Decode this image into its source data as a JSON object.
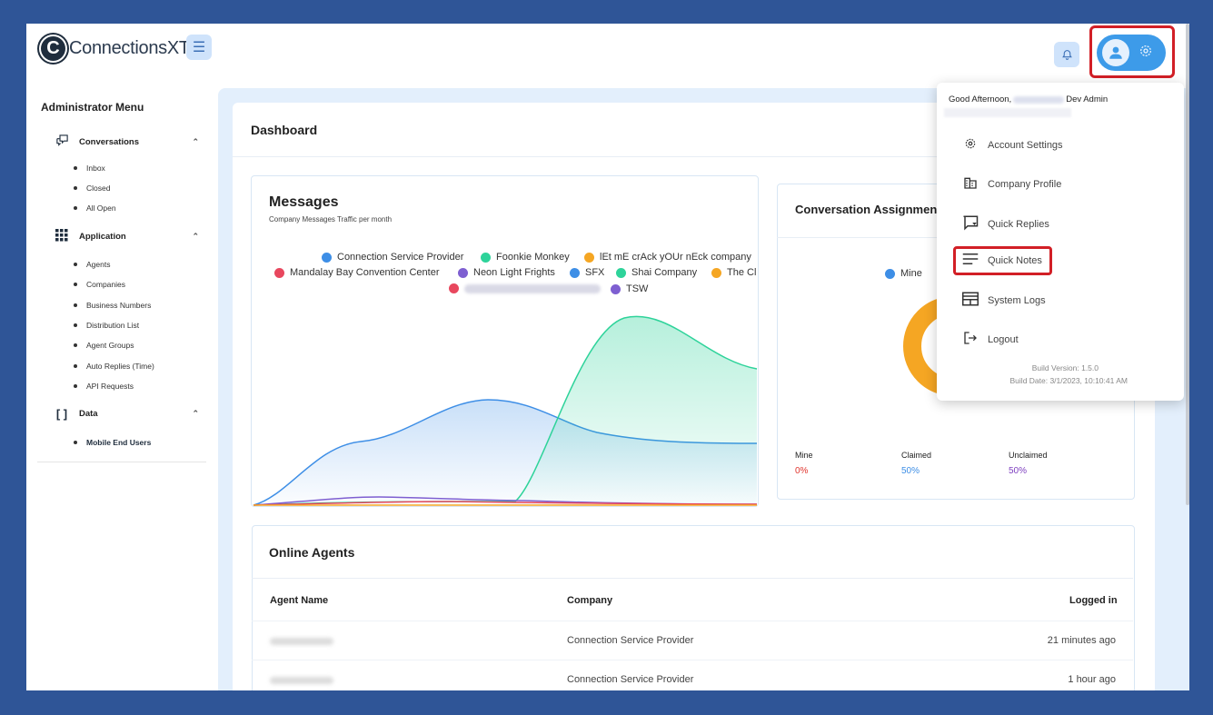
{
  "brand": {
    "name": "ConnectionsXT",
    "tm": "™",
    "mark": "C"
  },
  "header": {
    "menu_icon": "hamburger-icon",
    "bell_icon": "bell-icon",
    "avatar_icon": "user-icon",
    "settings_icon": "gear-icon"
  },
  "sidebar": {
    "title": "Administrator Menu",
    "sections": [
      {
        "label": "Conversations",
        "items": [
          "Inbox",
          "Closed",
          "All Open"
        ]
      },
      {
        "label": "Application",
        "items": [
          "Agents",
          "Companies",
          "Business Numbers",
          "Distribution List",
          "Agent Groups",
          "Auto Replies (Time)",
          "API Requests"
        ]
      },
      {
        "label": "Data",
        "icon_text": "[ ]",
        "items": [
          "Mobile End Users"
        ]
      }
    ]
  },
  "dashboard": {
    "title": "Dashboard"
  },
  "messages": {
    "title": "Messages",
    "subtitle": "Company Messages Traffic per month",
    "legend": [
      {
        "name": "Connection Service Provider",
        "color": "#3d8ee6"
      },
      {
        "name": "Foonkie Monkey",
        "color": "#2ed39a"
      },
      {
        "name": "lEt mE crAck yOUr nEck company",
        "color": "#f5a623"
      },
      {
        "name": "Mandalay Bay Convention Center",
        "color": "#e8475e"
      },
      {
        "name": "Neon Light Frights",
        "color": "#7e5fd1"
      },
      {
        "name": "SFX",
        "color": "#3d8ee6"
      },
      {
        "name": "Shai Company",
        "color": "#2ed39a"
      },
      {
        "name": "The Cl",
        "color": "#f5a623"
      },
      {
        "name": "",
        "color": "#e8475e"
      },
      {
        "name": "TSW",
        "color": "#7e5fd1"
      }
    ]
  },
  "conversation": {
    "title": "Conversation Assignments",
    "legend_mine": "Mine",
    "stats": [
      {
        "label": "Mine",
        "value": "0%",
        "color": "#e0362f"
      },
      {
        "label": "Claimed",
        "value": "50%",
        "color": "#3d8ee6"
      },
      {
        "label": "Unclaimed",
        "value": "50%",
        "color": "#7e3fbf"
      }
    ]
  },
  "agents": {
    "title": "Online Agents",
    "columns": [
      "Agent Name",
      "Company",
      "Logged in"
    ],
    "rows": [
      {
        "company": "Connection Service Provider",
        "logged_in": "21 minutes ago"
      },
      {
        "company": "Connection Service Provider",
        "logged_in": "1 hour ago"
      }
    ]
  },
  "dropdown": {
    "greeting": "Good Afternoon,",
    "role": "Dev Admin",
    "items": [
      {
        "label": "Account Settings",
        "icon": "gear-icon"
      },
      {
        "label": "Company Profile",
        "icon": "building-icon"
      },
      {
        "label": "Quick Replies",
        "icon": "chat-icon"
      },
      {
        "label": "Quick Notes",
        "icon": "notes-icon"
      },
      {
        "label": "System Logs",
        "icon": "logs-icon"
      },
      {
        "label": "Logout",
        "icon": "logout-icon"
      }
    ],
    "build_version": "Build Version: 1.5.0",
    "build_date": "Build Date: 3/1/2023, 10:10:41 AM"
  }
}
